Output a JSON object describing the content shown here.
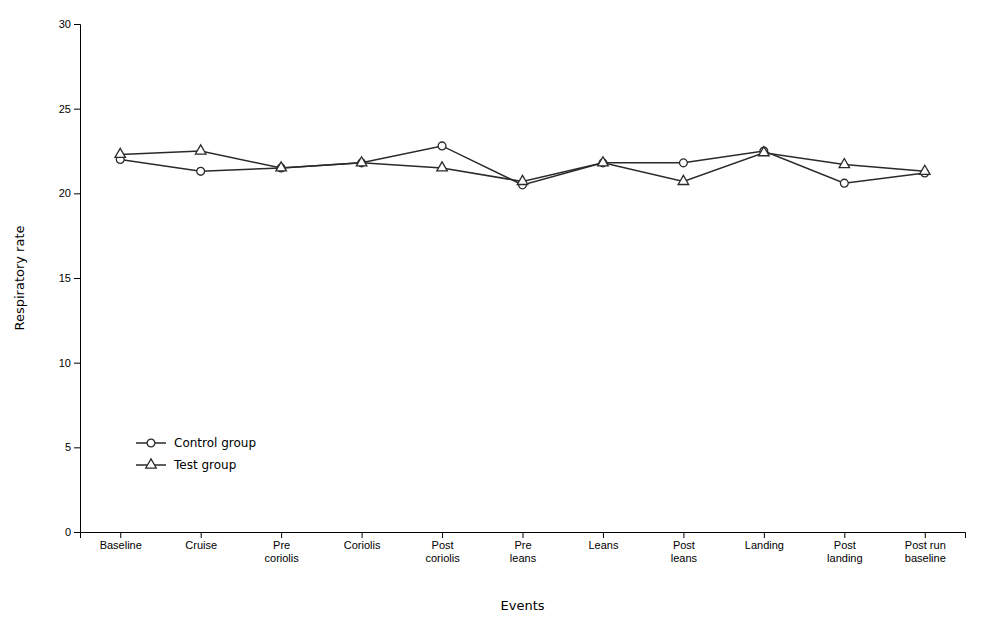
{
  "chart_data": {
    "type": "line",
    "xlabel": "Events",
    "ylabel": "Respiratory rate",
    "categories": [
      "Baseline",
      "Cruise",
      "Pre\ncoriolis",
      "Coriolis",
      "Post\ncoriolis",
      "Pre\nleans",
      "Leans",
      "Post\nleans",
      "Landing",
      "Post\nlanding",
      "Post run\nbaseline"
    ],
    "series": [
      {
        "name": "Control group",
        "color": "#2a2a2a",
        "marker": "circle",
        "values": [
          22.0,
          21.3,
          21.5,
          21.8,
          22.8,
          20.5,
          21.8,
          21.8,
          22.5,
          20.6,
          21.2
        ]
      },
      {
        "name": "Test group",
        "color": "#2a2a2a",
        "marker": "triangle",
        "values": [
          22.3,
          22.5,
          21.5,
          21.8,
          21.5,
          20.7,
          21.8,
          20.7,
          22.4,
          21.7,
          21.3
        ]
      }
    ],
    "ylim": [
      0,
      30
    ],
    "yticks": [
      0,
      5,
      10,
      15,
      20,
      25,
      30
    ],
    "grid": false,
    "legend": "lower left"
  }
}
